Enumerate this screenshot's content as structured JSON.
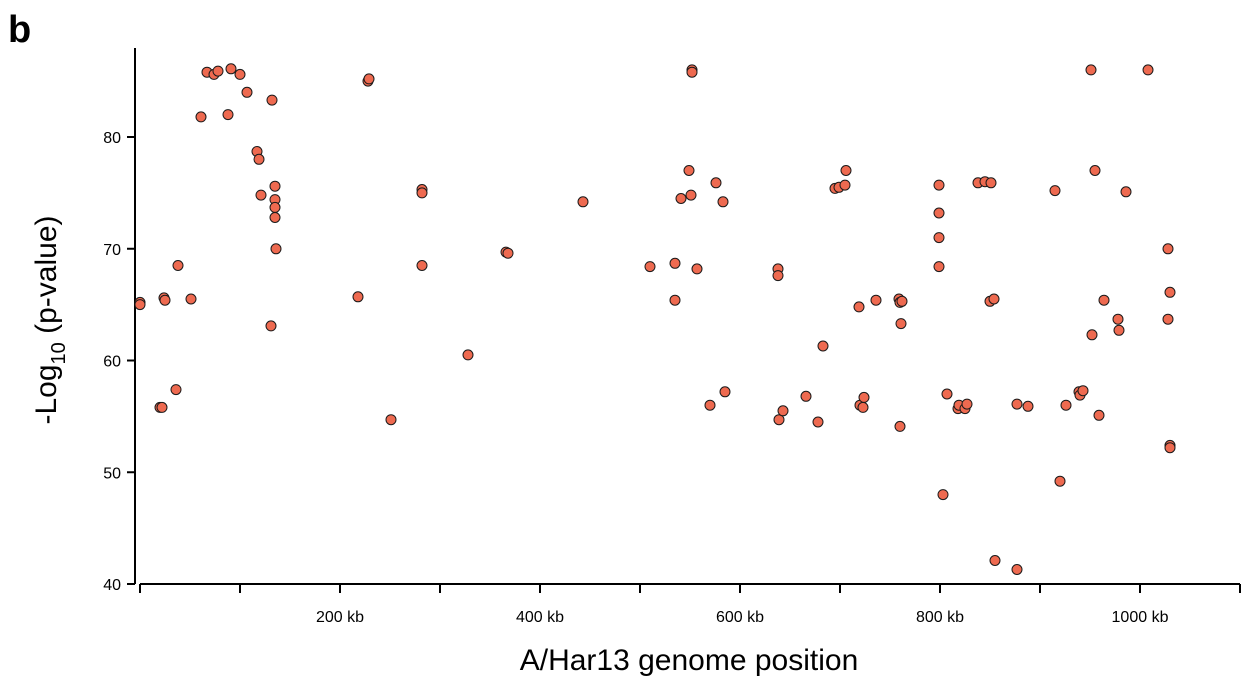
{
  "panel_label": "b",
  "chart_data": {
    "type": "scatter",
    "title": "",
    "xlabel": "A/Har13 genome position",
    "ylabel_main": "-Log",
    "ylabel_sub": "10",
    "ylabel_rest": " (p-value)",
    "xlim": [
      0,
      1100000
    ],
    "ylim": [
      40,
      88
    ],
    "x_tick_labels": [
      {
        "value": 200000,
        "label": "200 kb"
      },
      {
        "value": 400000,
        "label": "400 kb"
      },
      {
        "value": 600000,
        "label": "600 kb"
      },
      {
        "value": 800000,
        "label": "800 kb"
      },
      {
        "value": 1000000,
        "label": "1000 kb"
      }
    ],
    "x_minor_ticks": [
      0,
      100000,
      300000,
      500000,
      700000,
      900000,
      1100000
    ],
    "y_tick_labels": [
      40,
      50,
      60,
      70,
      80
    ],
    "grid": false,
    "legend": "none",
    "point_color": "#ee6a50",
    "points": [
      [
        0,
        65.2
      ],
      [
        0,
        65.0
      ],
      [
        20000,
        55.8
      ],
      [
        22000,
        55.8
      ],
      [
        24000,
        65.6
      ],
      [
        25000,
        65.4
      ],
      [
        36000,
        57.4
      ],
      [
        38000,
        68.5
      ],
      [
        51000,
        65.5
      ],
      [
        61000,
        81.8
      ],
      [
        67000,
        85.8
      ],
      [
        74000,
        85.6
      ],
      [
        78000,
        85.9
      ],
      [
        88000,
        82.0
      ],
      [
        91000,
        86.1
      ],
      [
        100000,
        85.6
      ],
      [
        107000,
        84.0
      ],
      [
        117000,
        78.7
      ],
      [
        119000,
        78.0
      ],
      [
        121000,
        74.8
      ],
      [
        131000,
        63.1
      ],
      [
        132000,
        83.3
      ],
      [
        135000,
        75.6
      ],
      [
        135000,
        74.4
      ],
      [
        135000,
        73.7
      ],
      [
        135000,
        72.8
      ],
      [
        136000,
        70.0
      ],
      [
        218000,
        65.7
      ],
      [
        228000,
        85.0
      ],
      [
        229000,
        85.2
      ],
      [
        251000,
        54.7
      ],
      [
        282000,
        75.3
      ],
      [
        282000,
        75.0
      ],
      [
        282000,
        68.5
      ],
      [
        328000,
        60.5
      ],
      [
        366000,
        69.7
      ],
      [
        368000,
        69.6
      ],
      [
        443000,
        74.2
      ],
      [
        510000,
        68.4
      ],
      [
        535000,
        68.7
      ],
      [
        535000,
        65.4
      ],
      [
        541000,
        74.5
      ],
      [
        549000,
        77.0
      ],
      [
        551000,
        74.8
      ],
      [
        552000,
        86.0
      ],
      [
        552000,
        85.8
      ],
      [
        557000,
        68.2
      ],
      [
        570000,
        56.0
      ],
      [
        576000,
        75.9
      ],
      [
        583000,
        74.2
      ],
      [
        585000,
        57.2
      ],
      [
        638000,
        68.2
      ],
      [
        638000,
        67.6
      ],
      [
        639000,
        54.7
      ],
      [
        643000,
        55.5
      ],
      [
        666000,
        56.8
      ],
      [
        678000,
        54.5
      ],
      [
        683000,
        61.3
      ],
      [
        695000,
        75.4
      ],
      [
        699000,
        75.5
      ],
      [
        705000,
        75.7
      ],
      [
        706000,
        77.0
      ],
      [
        719000,
        64.8
      ],
      [
        720000,
        56.0
      ],
      [
        723000,
        55.8
      ],
      [
        724000,
        56.7
      ],
      [
        736000,
        65.4
      ],
      [
        759000,
        65.5
      ],
      [
        760000,
        65.2
      ],
      [
        760000,
        54.1
      ],
      [
        761000,
        63.3
      ],
      [
        762000,
        65.3
      ],
      [
        799000,
        75.7
      ],
      [
        799000,
        73.2
      ],
      [
        799000,
        71.0
      ],
      [
        799000,
        68.4
      ],
      [
        803000,
        48.0
      ],
      [
        807000,
        57.0
      ],
      [
        818000,
        55.7
      ],
      [
        819000,
        56.0
      ],
      [
        825000,
        55.7
      ],
      [
        827000,
        56.1
      ],
      [
        838000,
        75.9
      ],
      [
        845000,
        76.0
      ],
      [
        851000,
        75.9
      ],
      [
        850000,
        65.3
      ],
      [
        854000,
        65.5
      ],
      [
        855000,
        42.1
      ],
      [
        877000,
        56.1
      ],
      [
        877000,
        41.3
      ],
      [
        888000,
        55.9
      ],
      [
        915000,
        75.2
      ],
      [
        920000,
        49.2
      ],
      [
        926000,
        56.0
      ],
      [
        939000,
        57.2
      ],
      [
        940000,
        56.9
      ],
      [
        943000,
        57.3
      ],
      [
        951000,
        86.0
      ],
      [
        952000,
        62.3
      ],
      [
        955000,
        77.0
      ],
      [
        959000,
        55.1
      ],
      [
        964000,
        65.4
      ],
      [
        978000,
        63.7
      ],
      [
        979000,
        62.7
      ],
      [
        986000,
        75.1
      ],
      [
        1008000,
        86.0
      ],
      [
        1028000,
        70.0
      ],
      [
        1028000,
        63.7
      ],
      [
        1030000,
        66.1
      ],
      [
        1030000,
        52.4
      ],
      [
        1030000,
        52.2
      ]
    ]
  }
}
